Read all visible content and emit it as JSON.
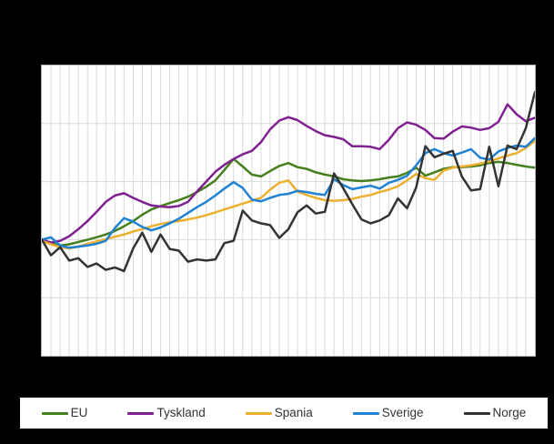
{
  "legend": {
    "items": [
      {
        "label": "EU",
        "color": "#467f1e"
      },
      {
        "label": "Tyskland",
        "color": "#802191"
      },
      {
        "label": "Spania",
        "color": "#ecb02f"
      },
      {
        "label": "Sverige",
        "color": "#1f82d2"
      },
      {
        "label": "Norge",
        "color": "#333333"
      }
    ]
  },
  "canvas": {
    "page_bg": "#000000",
    "plot_bg": "#ffffff",
    "gridline_color": "#d9d9d9",
    "border_color": "#b5b5b5"
  },
  "chart_data": {
    "type": "line",
    "x_count": 55,
    "x_tick_labels_visible": false,
    "y_tick_labels_visible": false,
    "ylim": [
      80,
      130
    ],
    "grid": true,
    "gridline_step_y": 10,
    "legend_position": "bottom",
    "series": [
      {
        "name": "EU",
        "color": "#467f1e",
        "values": [
          100,
          99.4,
          99.0,
          99.2,
          99.6,
          100.0,
          100.4,
          100.9,
          101.5,
          102.3,
          103.2,
          104.3,
          105.2,
          105.8,
          106.3,
          106.8,
          107.4,
          108.2,
          109.1,
          110.2,
          112.0,
          113.9,
          112.6,
          111.2,
          110.9,
          111.8,
          112.7,
          113.2,
          112.5,
          112.2,
          111.6,
          111.2,
          110.9,
          110.4,
          110.2,
          110.1,
          110.2,
          110.4,
          110.7,
          110.9,
          111.5,
          112.4,
          111.0,
          111.6,
          112.2,
          112.5,
          112.5,
          112.6,
          112.8,
          113.2,
          113.4,
          113.2,
          112.9,
          112.6,
          112.4
        ]
      },
      {
        "name": "Tyskland",
        "color": "#802191",
        "values": [
          100,
          99.5,
          99.8,
          100.6,
          101.8,
          103.2,
          104.8,
          106.5,
          107.6,
          108.0,
          107.2,
          106.5,
          105.9,
          105.7,
          105.6,
          105.8,
          106.5,
          108.3,
          110.0,
          111.7,
          112.9,
          113.9,
          114.7,
          115.3,
          116.8,
          119.0,
          120.5,
          121.1,
          120.6,
          119.6,
          118.7,
          118.0,
          117.7,
          117.3,
          116.1,
          116.1,
          116.0,
          115.6,
          117.2,
          119.2,
          120.2,
          119.8,
          118.9,
          117.5,
          117.4,
          118.6,
          119.5,
          119.3,
          118.9,
          119.2,
          120.3,
          123.3,
          121.6,
          120.4,
          121.0
        ]
      },
      {
        "name": "Spania",
        "color": "#ecb02f",
        "values": [
          99.8,
          99.2,
          98.7,
          98.5,
          98.8,
          99.3,
          99.7,
          100.1,
          100.5,
          100.9,
          101.4,
          101.8,
          102.3,
          102.7,
          103.0,
          103.2,
          103.5,
          103.8,
          104.2,
          104.7,
          105.2,
          105.7,
          106.2,
          106.7,
          107.2,
          108.6,
          109.8,
          110.2,
          108.3,
          107.7,
          107.2,
          106.8,
          106.7,
          106.8,
          107.0,
          107.4,
          107.7,
          108.2,
          108.6,
          109.2,
          110.2,
          111.3,
          110.6,
          110.3,
          111.9,
          112.4,
          112.6,
          112.8,
          113.1,
          113.5,
          114.0,
          114.5,
          114.9,
          115.8,
          117.0
        ]
      },
      {
        "name": "Sverige",
        "color": "#1f82d2",
        "values": [
          100.0,
          100.4,
          99.0,
          98.6,
          98.8,
          99.0,
          99.3,
          99.8,
          102.0,
          103.7,
          103.1,
          102.2,
          101.6,
          102.1,
          102.8,
          103.6,
          104.6,
          105.6,
          106.5,
          107.6,
          108.8,
          109.9,
          108.9,
          106.9,
          106.6,
          107.2,
          107.7,
          107.9,
          108.4,
          108.2,
          107.9,
          107.7,
          110.4,
          109.4,
          108.7,
          109.0,
          109.3,
          108.8,
          109.8,
          110.3,
          111.0,
          112.8,
          114.9,
          115.6,
          114.9,
          114.5,
          115.0,
          115.6,
          114.1,
          113.8,
          115.2,
          115.8,
          116.2,
          116.0,
          117.5
        ]
      },
      {
        "name": "Norge",
        "color": "#333333",
        "values": [
          100.0,
          97.3,
          98.7,
          96.4,
          96.8,
          95.3,
          95.9,
          94.8,
          95.2,
          94.6,
          98.5,
          101.2,
          97.9,
          100.9,
          98.4,
          98.1,
          96.2,
          96.6,
          96.4,
          96.6,
          99.4,
          99.8,
          105.0,
          103.3,
          102.8,
          102.5,
          100.3,
          101.8,
          104.7,
          105.9,
          104.5,
          104.8,
          111.4,
          108.9,
          106.1,
          103.5,
          102.8,
          103.3,
          104.2,
          107.1,
          105.4,
          109.0,
          116.1,
          114.2,
          114.8,
          115.3,
          110.9,
          108.5,
          108.7,
          116.0,
          109.2,
          116.2,
          115.6,
          119.2,
          125.4
        ]
      }
    ]
  }
}
